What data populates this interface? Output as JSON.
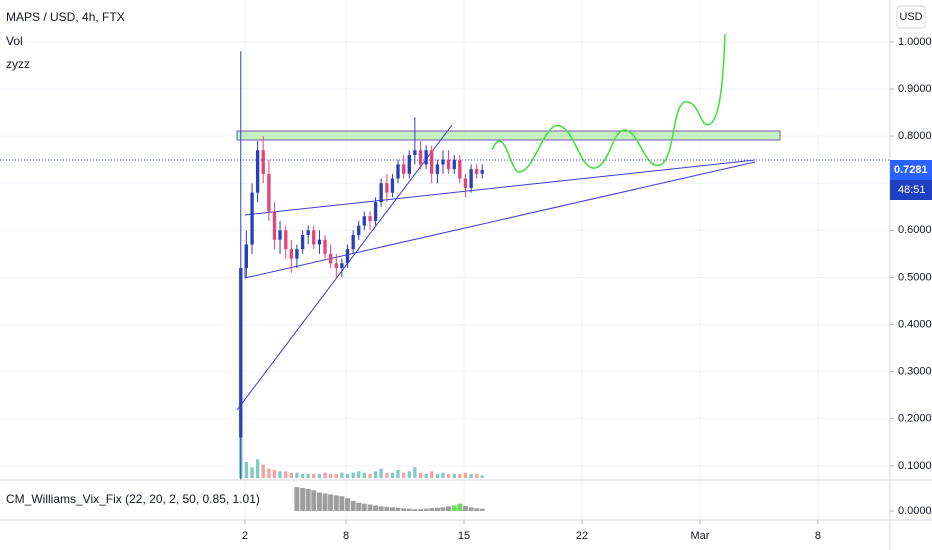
{
  "chart_data": {
    "type": "candlestick",
    "title": "MAPS / USD, 4h, FTX",
    "indicators": [
      "Vol",
      "zyzz"
    ],
    "currency": "USD",
    "x": [
      1.75,
      2.08,
      2.42,
      2.75,
      3.08,
      3.42,
      3.75,
      4.08,
      4.42,
      4.75,
      5.08,
      5.42,
      5.75,
      6.08,
      6.42,
      6.75,
      7.08,
      7.42,
      7.75,
      8.08,
      8.42,
      8.75,
      9.08,
      9.42,
      9.75,
      10.08,
      10.42,
      10.75,
      11.08,
      11.42,
      11.75,
      12.08,
      12.42,
      12.75,
      13.08,
      13.42,
      13.75,
      14.08,
      14.42,
      14.75,
      15.08,
      15.42,
      15.75,
      16.08
    ],
    "open": [
      0.16,
      0.52,
      0.57,
      0.68,
      0.77,
      0.72,
      0.64,
      0.58,
      0.6,
      0.56,
      0.54,
      0.56,
      0.59,
      0.6,
      0.57,
      0.58,
      0.55,
      0.53,
      0.52,
      0.53,
      0.56,
      0.59,
      0.61,
      0.63,
      0.62,
      0.66,
      0.7,
      0.68,
      0.71,
      0.74,
      0.72,
      0.76,
      0.77,
      0.74,
      0.77,
      0.72,
      0.74,
      0.75,
      0.73,
      0.75,
      0.71,
      0.69,
      0.73,
      0.72
    ],
    "high": [
      0.98,
      0.6,
      0.7,
      0.79,
      0.8,
      0.75,
      0.66,
      0.62,
      0.61,
      0.58,
      0.57,
      0.6,
      0.61,
      0.61,
      0.6,
      0.59,
      0.57,
      0.55,
      0.54,
      0.57,
      0.6,
      0.62,
      0.64,
      0.64,
      0.67,
      0.71,
      0.72,
      0.72,
      0.75,
      0.76,
      0.77,
      0.84,
      0.79,
      0.78,
      0.78,
      0.75,
      0.77,
      0.77,
      0.76,
      0.76,
      0.72,
      0.74,
      0.74,
      0.74
    ],
    "low": [
      0.07,
      0.5,
      0.55,
      0.66,
      0.7,
      0.62,
      0.56,
      0.55,
      0.54,
      0.51,
      0.52,
      0.55,
      0.57,
      0.56,
      0.55,
      0.54,
      0.52,
      0.5,
      0.5,
      0.52,
      0.55,
      0.58,
      0.6,
      0.6,
      0.61,
      0.65,
      0.66,
      0.67,
      0.7,
      0.71,
      0.71,
      0.74,
      0.73,
      0.73,
      0.7,
      0.7,
      0.72,
      0.72,
      0.72,
      0.7,
      0.67,
      0.68,
      0.71,
      0.71
    ],
    "close": [
      0.52,
      0.57,
      0.68,
      0.77,
      0.72,
      0.64,
      0.58,
      0.6,
      0.56,
      0.54,
      0.56,
      0.59,
      0.6,
      0.57,
      0.58,
      0.55,
      0.53,
      0.52,
      0.53,
      0.56,
      0.59,
      0.61,
      0.63,
      0.62,
      0.66,
      0.7,
      0.68,
      0.71,
      0.74,
      0.72,
      0.76,
      0.77,
      0.74,
      0.77,
      0.72,
      0.74,
      0.75,
      0.73,
      0.75,
      0.71,
      0.69,
      0.73,
      0.72,
      0.7281
    ],
    "volume": [
      30,
      12,
      8,
      14,
      10,
      7,
      6,
      5,
      5,
      4,
      4,
      3,
      3,
      3,
      3,
      4,
      3,
      3,
      4,
      3,
      4,
      5,
      4,
      3,
      5,
      7,
      4,
      4,
      6,
      4,
      5,
      8,
      4,
      3,
      5,
      3,
      4,
      3,
      3,
      3,
      4,
      3,
      3,
      2
    ],
    "up_color": "#2b3fb8",
    "down_color": "#e0457b",
    "vol_up_color": "#80cbc4",
    "vol_down_color": "#f4a3a3",
    "last_price": {
      "value": 0.7281,
      "label": "0.7281"
    },
    "countdown": "48:51",
    "xlim": [
      -12.54,
      40.28
    ],
    "xticks": [
      2,
      8,
      15,
      22,
      {
        "value": 29,
        "label": "Mar"
      },
      {
        "value": 36,
        "label": "8"
      }
    ],
    "ylim": [
      0.07,
      1.089
    ],
    "yticks": [
      {
        "value": 0.1,
        "label": "0.1000"
      },
      {
        "value": 0.2,
        "label": "0.2000"
      },
      {
        "value": 0.3,
        "label": "0.3000"
      },
      {
        "value": 0.4,
        "label": "0.4000"
      },
      {
        "value": 0.5,
        "label": "0.5000"
      },
      {
        "value": 0.6,
        "label": "0.6000"
      },
      {
        "value": 0.7,
        "label": "0.7000"
      },
      {
        "value": 0.8,
        "label": "0.8000"
      },
      {
        "value": 0.9,
        "label": "0.9000"
      },
      {
        "value": 1.0,
        "label": "1.0000"
      }
    ],
    "grid": true,
    "vix": {
      "name": "CM_Williams_Vix_Fix (22, 20, 2, 50, 0.85, 1.01)",
      "color": "#9e9e9e",
      "highlight_color": "#66e05a",
      "values": [
        null,
        null,
        null,
        null,
        null,
        null,
        null,
        null,
        null,
        null,
        0.052,
        0.05,
        0.048,
        0.045,
        0.04,
        0.038,
        0.036,
        0.034,
        0.032,
        0.028,
        0.022,
        0.018,
        0.016,
        0.014,
        0.012,
        0.01,
        0.009,
        0.008,
        0.007,
        0.006,
        0.005,
        0.004,
        0.004,
        0.005,
        0.006,
        0.007,
        0.008,
        0.01,
        0.012,
        0.016,
        0.011,
        0.008,
        0.006,
        0.005
      ],
      "highlight": [
        false,
        false,
        false,
        false,
        false,
        false,
        false,
        false,
        false,
        false,
        false,
        false,
        false,
        false,
        false,
        false,
        false,
        false,
        false,
        false,
        false,
        false,
        false,
        false,
        false,
        false,
        false,
        false,
        false,
        false,
        false,
        false,
        false,
        false,
        false,
        false,
        false,
        false,
        true,
        true,
        false,
        false,
        false,
        false
      ],
      "ylim": [
        -0.0196,
        0.063
      ],
      "yticks": [
        {
          "value": 0,
          "label": "0.0000"
        }
      ]
    }
  }
}
